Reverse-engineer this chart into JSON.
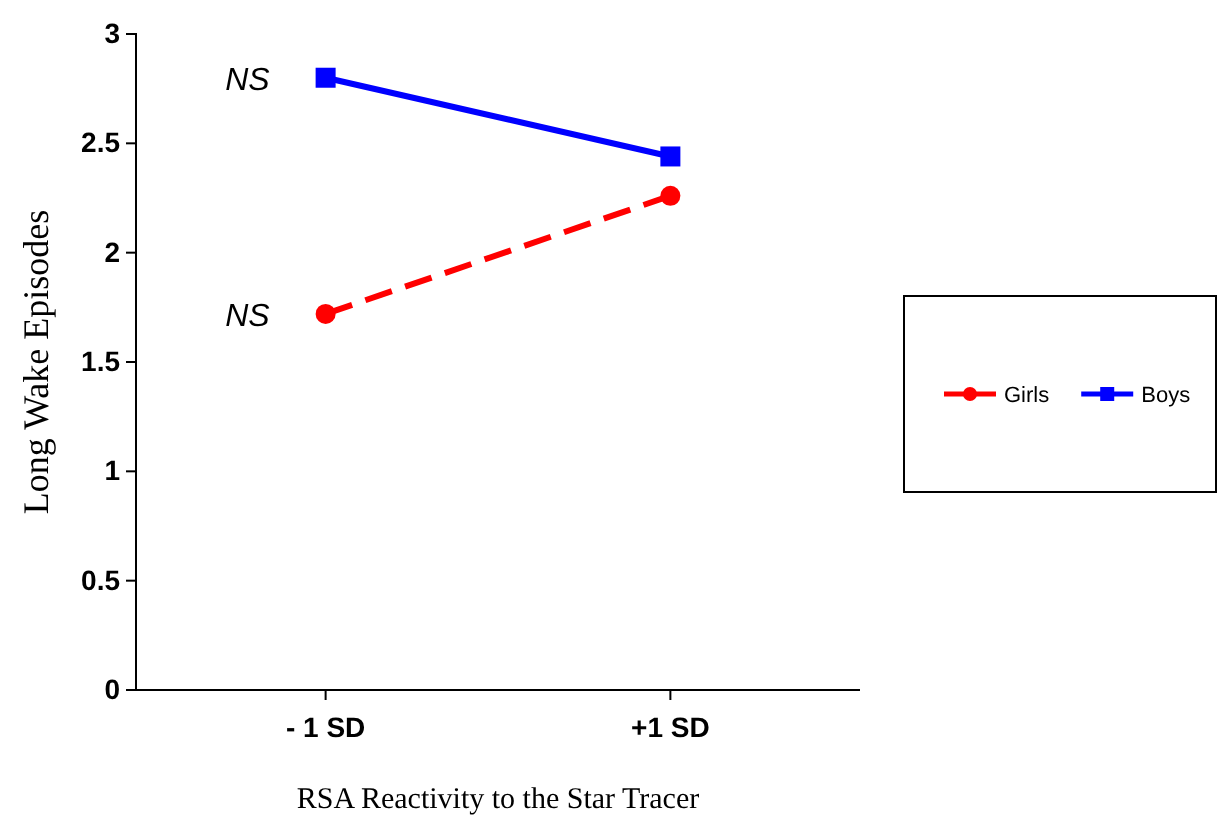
{
  "chart_data": {
    "type": "line",
    "xlabel": "RSA Reactivity to the Star Tracer",
    "ylabel": "Long Wake Episodes",
    "categories": [
      "- 1 SD",
      "+1 SD"
    ],
    "ylim": [
      0,
      3
    ],
    "yticks": [
      0,
      0.5,
      1,
      1.5,
      2,
      2.5,
      3
    ],
    "grid": false,
    "legend": "right",
    "series": [
      {
        "name": "Girls",
        "color": "#ff0000",
        "values": [
          1.72,
          2.26
        ],
        "marker": "circle",
        "line_style": "dashed"
      },
      {
        "name": "Boys",
        "color": "#0000ff",
        "values": [
          2.8,
          2.44
        ],
        "marker": "square",
        "line_style": "solid"
      }
    ],
    "annotations": [
      {
        "text": "NS",
        "x": "- 1 SD",
        "y": 2.8
      },
      {
        "text": "NS",
        "x": "- 1 SD",
        "y": 1.72
      }
    ]
  }
}
